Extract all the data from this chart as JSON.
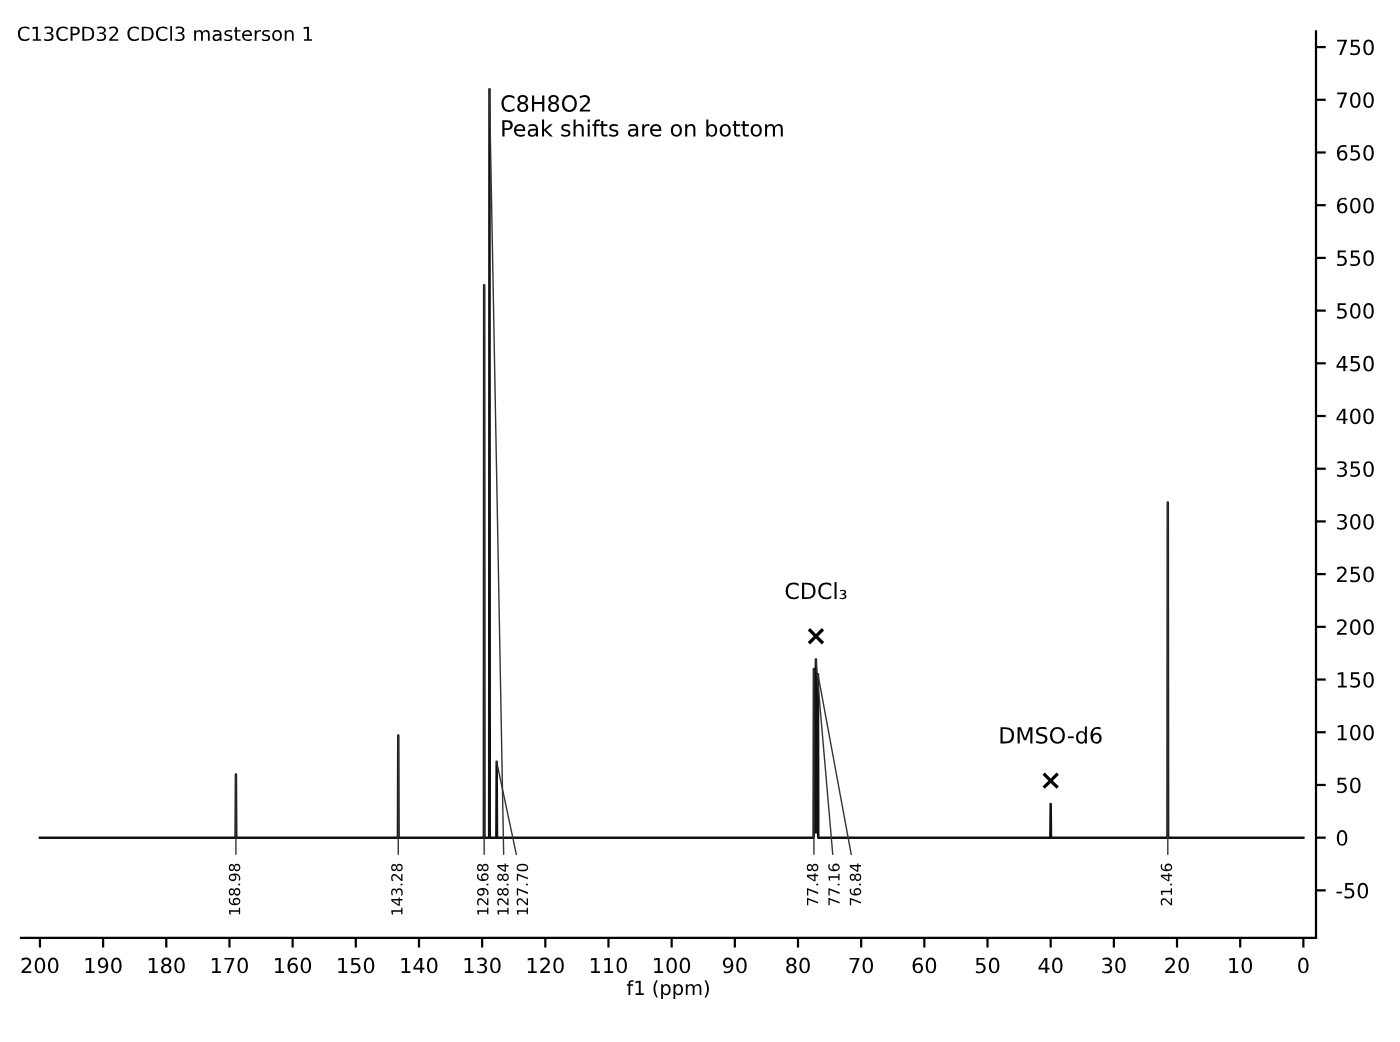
{
  "chart_data": {
    "type": "line",
    "title": "C13CPD32 CDCl3 masterson 1",
    "xlabel": "f1 (ppm)",
    "x": [
      200,
      169.03,
      168.98,
      168.93,
      143.33,
      143.28,
      143.23,
      129.73,
      129.68,
      129.63,
      128.89,
      128.84,
      128.79,
      127.75,
      127.7,
      127.65,
      77.53,
      77.48,
      77.32,
      77.16,
      77.0,
      76.84,
      76.79,
      40.05,
      40.0,
      39.95,
      21.51,
      21.46,
      21.41,
      0
    ],
    "series": [
      {
        "color": "#111111",
        "values": [
          0,
          0,
          60,
          0,
          0,
          97,
          0,
          0,
          524,
          0,
          0,
          710,
          0,
          0,
          72,
          0,
          0,
          160,
          5,
          169,
          5,
          155,
          0,
          0,
          32,
          0,
          0,
          318,
          0,
          0
        ]
      }
    ],
    "xlim": [
      203,
      -2
    ],
    "xticks": [
      200,
      190,
      180,
      170,
      160,
      150,
      140,
      130,
      120,
      110,
      100,
      90,
      80,
      70,
      60,
      50,
      40,
      30,
      20,
      10,
      0
    ],
    "ylim": [
      -95,
      765
    ],
    "yticks": [
      -50,
      0,
      50,
      100,
      150,
      200,
      250,
      300,
      350,
      400,
      450,
      500,
      550,
      600,
      650,
      700,
      750
    ],
    "grid": false,
    "marker": "none",
    "line_style": "solid",
    "annotations": [
      "C8H8O2\nPeak shifts are on bottom",
      {
        "text": "168.98",
        "x": 168.98,
        "y": 60
      },
      {
        "text": "143.28",
        "x": 143.28,
        "y": 97
      },
      {
        "text": "129.68",
        "x": 129.68,
        "y": 524
      },
      {
        "text": "128.84",
        "x": 128.84,
        "y": 710
      },
      {
        "text": "127.70",
        "x": 127.7,
        "y": 72
      },
      {
        "text": "77.48",
        "x": 77.48,
        "y": 160
      },
      {
        "text": "77.16",
        "x": 77.16,
        "y": 169
      },
      {
        "text": "76.84",
        "x": 76.84,
        "y": 155
      },
      {
        "text": "21.46",
        "x": 21.46,
        "y": 318
      },
      {
        "text": "×",
        "x": 77.16,
        "y": 169
      },
      {
        "text": "CDCl₃",
        "x": 77.16,
        "y": 169
      },
      {
        "text": "×",
        "x": 40.0,
        "y": 32
      },
      {
        "text": "DMSO-d6",
        "x": 40.0,
        "y": 32
      }
    ]
  }
}
